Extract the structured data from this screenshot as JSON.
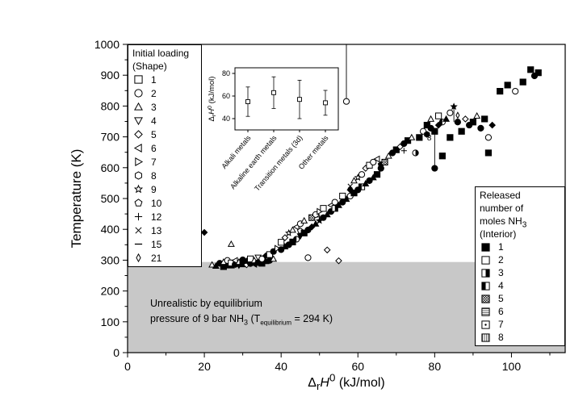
{
  "chart_data": [
    {
      "type": "scatter",
      "title": "",
      "xlabel": "DrH0 (kJ/mol)",
      "ylabel": "Temperature (K)",
      "xlabel_parts": {
        "delta": "Δ",
        "sub": "r",
        "h": "H",
        "sup": "0",
        "units": " (kJ/mol)"
      },
      "xlim": [
        0,
        114
      ],
      "ylim": [
        0,
        1000
      ],
      "xticks": [
        0,
        20,
        40,
        60,
        80,
        100
      ],
      "yticks": [
        0,
        100,
        200,
        300,
        400,
        500,
        600,
        700,
        800,
        900,
        1000
      ],
      "x_minor_step": 10,
      "y_minor_step": 50,
      "grid": false,
      "shaded_region": {
        "ymin": 0,
        "ymax": 294,
        "color": "#c8c8c8"
      },
      "annotation": {
        "line1": "Unrealistic by equilibrium",
        "line2_pre": "pressure of 9 bar NH",
        "line2_sub3": "3",
        "line2_mid": " (T",
        "line2_subeq": "equilibrium",
        "line2_end": " = 294 K)"
      },
      "point_label": {
        "x": 78.6,
        "y": 688,
        "text": "8"
      },
      "droplines": [
        {
          "x": 57,
          "y1": 815,
          "y2": 1000
        },
        {
          "x": 80,
          "y1": 598,
          "y2": 718
        },
        {
          "x": 85,
          "y1": 748,
          "y2": 798
        }
      ],
      "points_format": [
        "x",
        "y",
        "shape",
        "interior"
      ],
      "points": [
        [
          22,
          285,
          "triangle-up",
          "open"
        ],
        [
          23,
          281,
          "triangle-up",
          "solid"
        ],
        [
          24,
          290,
          "circle",
          "solid"
        ],
        [
          25,
          279,
          "square",
          "solid"
        ],
        [
          25,
          294,
          "triangle-up",
          "open"
        ],
        [
          26,
          284,
          "diamond",
          "solid"
        ],
        [
          26,
          299,
          "circle",
          "open"
        ],
        [
          27,
          282,
          "triangle-up",
          "solid"
        ],
        [
          27,
          291,
          "square",
          "open"
        ],
        [
          27,
          352,
          "triangle-up",
          "open"
        ],
        [
          28,
          286,
          "circle",
          "solid"
        ],
        [
          28,
          299,
          "triangle-left",
          "open"
        ],
        [
          29,
          283,
          "triangle-down",
          "solid"
        ],
        [
          29,
          294,
          "triangle-up",
          "open"
        ],
        [
          30,
          288,
          "square",
          "solid"
        ],
        [
          30,
          301,
          "circle",
          "solid"
        ],
        [
          31,
          285,
          "diamond",
          "open"
        ],
        [
          31,
          297,
          "triangle-up",
          "solid"
        ],
        [
          32,
          289,
          "circle",
          "solid"
        ],
        [
          32,
          304,
          "square",
          "open"
        ],
        [
          33,
          287,
          "triangle-left",
          "solid"
        ],
        [
          33,
          299,
          "triangle-up",
          "open"
        ],
        [
          34,
          292,
          "circle",
          "solid"
        ],
        [
          34,
          309,
          "triangle-down",
          "open"
        ],
        [
          35,
          290,
          "square",
          "solid"
        ],
        [
          35,
          304,
          "circle",
          "open"
        ],
        [
          36,
          296,
          "triangle-up",
          "solid"
        ],
        [
          36,
          314,
          "diamond",
          "solid"
        ],
        [
          37,
          299,
          "circle",
          "solid"
        ],
        [
          37,
          318,
          "square",
          "open"
        ],
        [
          38,
          304,
          "triangle-up",
          "open"
        ],
        [
          38,
          328,
          "circle",
          "solid"
        ],
        [
          20,
          390,
          "diamond",
          "solid"
        ],
        [
          39,
          338,
          "triangle-right",
          "open"
        ],
        [
          40,
          334,
          "circle",
          "solid"
        ],
        [
          40,
          358,
          "square",
          "open"
        ],
        [
          41,
          344,
          "triangle-up",
          "solid"
        ],
        [
          41,
          373,
          "diamond",
          "open"
        ],
        [
          42,
          350,
          "circle",
          "solid"
        ],
        [
          42,
          388,
          "star",
          "open"
        ],
        [
          43,
          359,
          "square",
          "solid"
        ],
        [
          43,
          398,
          "triangle-up",
          "open"
        ],
        [
          44,
          368,
          "circle",
          "half-left"
        ],
        [
          44,
          408,
          "triangle-left",
          "open"
        ],
        [
          45,
          378,
          "triangle-down",
          "solid"
        ],
        [
          45,
          418,
          "circle",
          "open"
        ],
        [
          45,
          395,
          "pentagon",
          "open"
        ],
        [
          46,
          388,
          "square",
          "solid"
        ],
        [
          46,
          428,
          "triangle-up",
          "open"
        ],
        [
          47,
          398,
          "circle",
          "solid"
        ],
        [
          47,
          308,
          "circle",
          "open"
        ],
        [
          48,
          408,
          "diamond",
          "solid"
        ],
        [
          48,
          438,
          "square",
          "crosshatch"
        ],
        [
          49,
          418,
          "triangle-up",
          "solid"
        ],
        [
          49,
          448,
          "circle",
          "open"
        ],
        [
          50,
          428,
          "star",
          "solid"
        ],
        [
          50,
          458,
          "triangle-right",
          "open"
        ],
        [
          50,
          440,
          "plus",
          "solid"
        ],
        [
          51,
          438,
          "circle",
          "solid"
        ],
        [
          51,
          468,
          "square",
          "open"
        ],
        [
          52,
          448,
          "triangle-up",
          "solid"
        ],
        [
          52,
          333,
          "diamond",
          "open"
        ],
        [
          53,
          458,
          "circle",
          "solid"
        ],
        [
          53,
          478,
          "triangle-left",
          "open"
        ],
        [
          54,
          468,
          "square",
          "half-right"
        ],
        [
          54,
          488,
          "circle",
          "open"
        ],
        [
          55,
          478,
          "triangle-up",
          "solid"
        ],
        [
          55,
          298,
          "diamond",
          "open"
        ],
        [
          56,
          488,
          "circle",
          "solid"
        ],
        [
          56,
          508,
          "square",
          "open"
        ],
        [
          57,
          498,
          "triangle-up",
          "solid"
        ],
        [
          57,
          815,
          "circle",
          "open"
        ],
        [
          58,
          508,
          "circle",
          "open"
        ],
        [
          58,
          528,
          "diamond",
          "solid"
        ],
        [
          58,
          540,
          "x",
          "solid"
        ],
        [
          59,
          518,
          "square",
          "solid"
        ],
        [
          59,
          558,
          "triangle-up",
          "open"
        ],
        [
          60,
          528,
          "circle",
          "solid"
        ],
        [
          60,
          568,
          "star",
          "open"
        ],
        [
          61,
          538,
          "square",
          "half-left"
        ],
        [
          61,
          578,
          "circle",
          "open"
        ],
        [
          62,
          548,
          "triangle-up",
          "solid"
        ],
        [
          62,
          598,
          "diamond",
          "open"
        ],
        [
          63,
          558,
          "circle",
          "solid"
        ],
        [
          63,
          608,
          "square",
          "open"
        ],
        [
          64,
          568,
          "triangle-up",
          "solid"
        ],
        [
          64,
          618,
          "circle",
          "open"
        ],
        [
          65,
          578,
          "square",
          "solid"
        ],
        [
          65,
          628,
          "triangle-left",
          "open"
        ],
        [
          66,
          598,
          "circle",
          "solid"
        ],
        [
          66,
          610,
          "pentagon",
          "solid"
        ],
        [
          67,
          618,
          "square",
          "crosshatch"
        ],
        [
          68,
          638,
          "triangle-up",
          "open"
        ],
        [
          69,
          648,
          "circle",
          "solid"
        ],
        [
          70,
          658,
          "square",
          "solid"
        ],
        [
          71,
          668,
          "diamond",
          "open"
        ],
        [
          72,
          678,
          "circle",
          "solid"
        ],
        [
          72,
          655,
          "plus",
          "solid"
        ],
        [
          73,
          688,
          "square",
          "solid"
        ],
        [
          74,
          698,
          "triangle-up",
          "open"
        ],
        [
          75,
          648,
          "circle",
          "half-right"
        ],
        [
          76,
          698,
          "square",
          "solid"
        ],
        [
          77,
          718,
          "circle",
          "open"
        ],
        [
          78,
          708,
          "hexagon",
          "solid"
        ],
        [
          78,
          738,
          "square",
          "solid"
        ],
        [
          79,
          728,
          "circle",
          "solid"
        ],
        [
          79,
          758,
          "triangle-up",
          "open"
        ],
        [
          80,
          718,
          "square",
          "solid"
        ],
        [
          80,
          598,
          "circle",
          "solid"
        ],
        [
          81,
          738,
          "diamond",
          "solid"
        ],
        [
          81,
          768,
          "square",
          "open"
        ],
        [
          82,
          748,
          "circle",
          "half-left"
        ],
        [
          82,
          638,
          "square",
          "solid"
        ],
        [
          83,
          758,
          "triangle-up",
          "solid"
        ],
        [
          84,
          778,
          "circle",
          "open"
        ],
        [
          84,
          698,
          "square",
          "solid"
        ],
        [
          85,
          798,
          "star",
          "solid"
        ],
        [
          86,
          748,
          "circle",
          "solid"
        ],
        [
          86,
          770,
          "thin-diamond",
          "open"
        ],
        [
          87,
          718,
          "square",
          "solid"
        ],
        [
          88,
          758,
          "diamond",
          "open"
        ],
        [
          89,
          738,
          "circle",
          "solid"
        ],
        [
          90,
          748,
          "square",
          "solid"
        ],
        [
          91,
          768,
          "triangle-up",
          "open"
        ],
        [
          92,
          728,
          "circle",
          "solid"
        ],
        [
          93,
          758,
          "square",
          "solid"
        ],
        [
          94,
          698,
          "circle",
          "open"
        ],
        [
          94,
          648,
          "square",
          "solid"
        ],
        [
          95,
          738,
          "diamond",
          "solid"
        ],
        [
          97,
          848,
          "square",
          "solid"
        ],
        [
          99,
          868,
          "square",
          "solid"
        ],
        [
          101,
          848,
          "circle",
          "open"
        ],
        [
          103,
          878,
          "square",
          "solid"
        ],
        [
          105,
          918,
          "square",
          "solid"
        ],
        [
          106,
          898,
          "circle",
          "solid"
        ],
        [
          107,
          908,
          "square",
          "solid"
        ]
      ]
    },
    {
      "type": "errorbar",
      "ylabel": "DrH0 (kJ/mol)",
      "ylabel_parts": {
        "delta": "Δ",
        "sub": "r",
        "h": "H",
        "sup": "0",
        "units": " (kJ/mol)"
      },
      "categories": [
        "Alkali metals",
        "Alkaline earth metals",
        "Transition metals (3d)",
        "Other metals"
      ],
      "means": [
        55,
        63,
        57,
        54
      ],
      "errors": [
        13,
        14,
        17,
        11
      ],
      "ylim": [
        30,
        85
      ],
      "yticks": [
        40,
        60,
        80
      ]
    }
  ],
  "shape_legend": {
    "title_line1": "Initial loading",
    "title_line2": "(Shape)",
    "items": [
      {
        "label": "1",
        "shape": "square"
      },
      {
        "label": "2",
        "shape": "circle"
      },
      {
        "label": "3",
        "shape": "triangle-up"
      },
      {
        "label": "4",
        "shape": "triangle-down"
      },
      {
        "label": "5",
        "shape": "diamond"
      },
      {
        "label": "6",
        "shape": "triangle-left"
      },
      {
        "label": "7",
        "shape": "triangle-right"
      },
      {
        "label": "8",
        "shape": "hexagon"
      },
      {
        "label": "9",
        "shape": "star"
      },
      {
        "label": "10",
        "shape": "pentagon"
      },
      {
        "label": "12",
        "shape": "plus"
      },
      {
        "label": "13",
        "shape": "x"
      },
      {
        "label": "15",
        "shape": "dash"
      },
      {
        "label": "21",
        "shape": "thin-diamond"
      }
    ]
  },
  "interior_legend": {
    "title_line1": "Released",
    "title_line2": "number of",
    "title_line3_pre": "moles NH",
    "title_line3_sub": "3",
    "title_line4": "(Interior)",
    "items": [
      {
        "label": "1",
        "interior": "solid"
      },
      {
        "label": "2",
        "interior": "open"
      },
      {
        "label": "3",
        "interior": "half-right"
      },
      {
        "label": "4",
        "interior": "half-left"
      },
      {
        "label": "5",
        "interior": "crosshatch"
      },
      {
        "label": "6",
        "interior": "hlines"
      },
      {
        "label": "7",
        "interior": "dot"
      },
      {
        "label": "8",
        "interior": "vlines"
      }
    ]
  },
  "colors": {
    "foreground": "#000000",
    "background": "#ffffff",
    "shaded": "#c8c8c8"
  }
}
